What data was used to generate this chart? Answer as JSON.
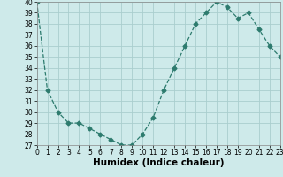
{
  "x": [
    0,
    1,
    2,
    3,
    4,
    5,
    6,
    7,
    8,
    9,
    10,
    11,
    12,
    13,
    14,
    15,
    16,
    17,
    18,
    19,
    20,
    21,
    22,
    23
  ],
  "y": [
    40,
    32,
    30,
    29,
    29,
    28.5,
    28,
    27.5,
    27,
    27,
    28,
    29.5,
    32,
    34,
    36,
    38,
    39,
    40,
    39.5,
    38.5,
    39,
    37.5,
    36,
    35
  ],
  "line_color": "#2d7b6e",
  "marker": "D",
  "marker_size": 2.5,
  "bg_color": "#ceeaea",
  "grid_color": "#aacece",
  "xlabel": "Humidex (Indice chaleur)",
  "ylabel": "",
  "ylim": [
    27,
    40
  ],
  "xlim": [
    0,
    23
  ],
  "yticks": [
    27,
    28,
    29,
    30,
    31,
    32,
    33,
    34,
    35,
    36,
    37,
    38,
    39,
    40
  ],
  "xticks": [
    0,
    1,
    2,
    3,
    4,
    5,
    6,
    7,
    8,
    9,
    10,
    11,
    12,
    13,
    14,
    15,
    16,
    17,
    18,
    19,
    20,
    21,
    22,
    23
  ],
  "label_fontsize": 7.5,
  "tick_fontsize": 5.5
}
